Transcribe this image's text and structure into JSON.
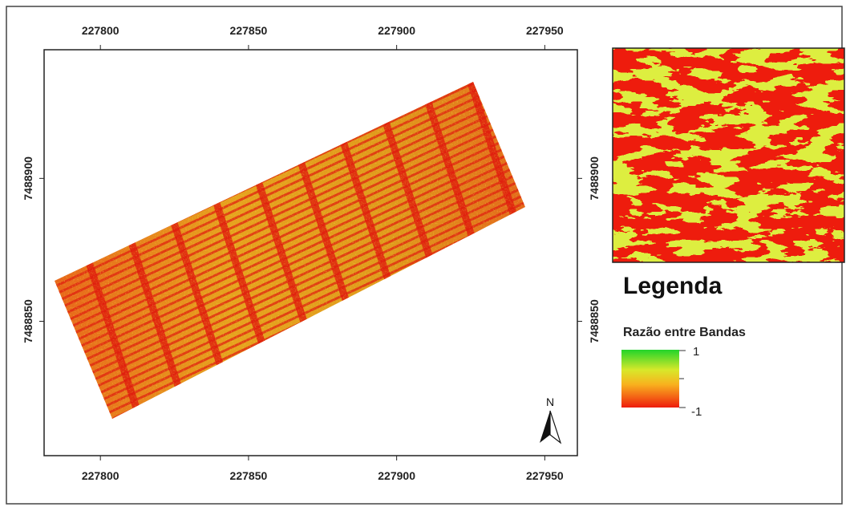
{
  "map": {
    "xlim": [
      227781,
      227961
    ],
    "ylim": [
      7488803,
      7488945
    ],
    "xticks": [
      227800,
      227850,
      227900,
      227950
    ],
    "yticks": [
      7488900,
      7488850
    ],
    "north": "N",
    "legend": {
      "title": "Legenda",
      "layer": "Razão entre Bandas",
      "max": 1,
      "min": -1
    }
  }
}
